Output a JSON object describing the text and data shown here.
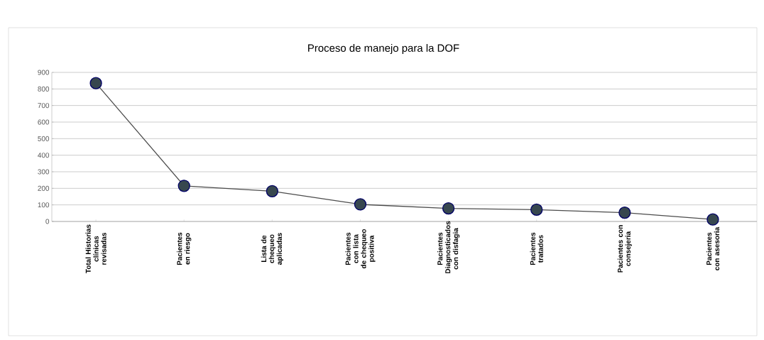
{
  "chart_data": {
    "type": "line",
    "title": "Proceso de manejo para la DOF",
    "categories": [
      "Total Historias clínicas revisadas",
      "Pacientes en riesgo",
      "Lista de chequeo aplicadas",
      "Pacientes con lista de chequeo positiva",
      "Pacientes Diagnosticados con disfagia",
      "Pacientes tratados",
      "Pacientes con consejeria",
      "Pacientes con asesoria"
    ],
    "series": [
      {
        "color": "#37474f",
        "values": [
          835,
          215,
          183,
          103,
          79,
          71,
          53,
          12
        ]
      }
    ],
    "ylim": [
      0,
      900
    ],
    "yticks": [
      0,
      100,
      200,
      300,
      400,
      500,
      600,
      700,
      800,
      900
    ],
    "grid": "y",
    "marker": "circle",
    "line_style": "solid"
  }
}
